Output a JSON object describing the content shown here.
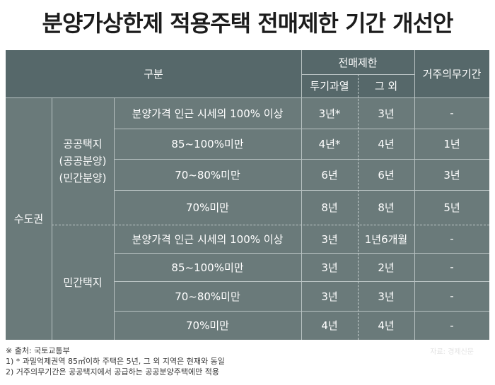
{
  "title": "분양가상한제 적용주택 전매제한 기간 개선안",
  "header": {
    "category": "구분",
    "resale_limit": "전매제한",
    "overheated": "투기과열",
    "other": "그 외",
    "residence": "거주의무기간"
  },
  "region": "수도권",
  "groups": {
    "public": [
      "공공택지",
      "(공공분양)",
      "(민간분양)"
    ],
    "private": "민간택지"
  },
  "rows": [
    {
      "label": "분양가격 인근 시세의 100% 이상",
      "overheated": "3년*",
      "other": "3년",
      "residence": "-"
    },
    {
      "label": "85~100%미만",
      "overheated": "4년*",
      "other": "4년",
      "residence": "1년"
    },
    {
      "label": "70~80%미만",
      "overheated": "6년",
      "other": "6년",
      "residence": "3년"
    },
    {
      "label": "70%미만",
      "overheated": "8년",
      "other": "8년",
      "residence": "5년"
    },
    {
      "label": "분양가격 인근 시세의 100% 이상",
      "overheated": "3년",
      "other": "1년6개월",
      "residence": "-"
    },
    {
      "label": "85~100%미만",
      "overheated": "3년",
      "other": "2년",
      "residence": "-"
    },
    {
      "label": "70~80%미만",
      "overheated": "3년",
      "other": "3년",
      "residence": "-"
    },
    {
      "label": "70%미만",
      "overheated": "4년",
      "other": "4년",
      "residence": "-"
    }
  ],
  "footnotes": {
    "source": "※ 출처: 국토교통부",
    "note1": "1) * 과밀억제권역 85㎡이하 주택은 5년, 그 외 지역은 현재와 동일",
    "note2": "2) 거주의무기간은 공공택지에서 공급하는 공공분양주택에만 적용"
  },
  "credit": "자료: 경제신문",
  "colors": {
    "table_bg": "#6a7a7a",
    "header_bg": "#56686a",
    "grid_line": "#b9c3c3",
    "title_text": "#1c1c1c"
  }
}
